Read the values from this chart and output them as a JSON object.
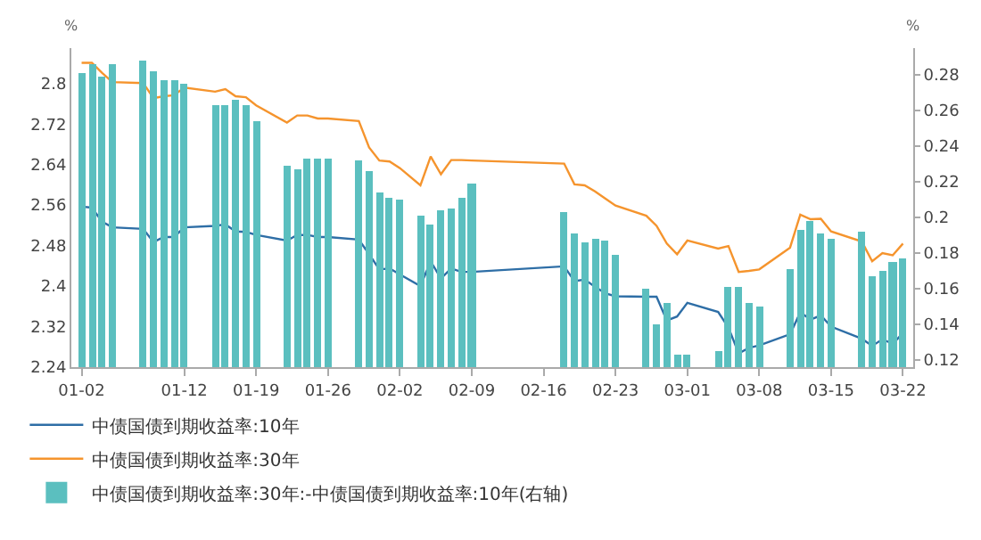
{
  "chart_data": {
    "type": "line",
    "x": [
      "--01-02",
      "--01-03",
      "--01-04",
      "--01-05",
      "--01-08",
      "--01-09",
      "--01-10",
      "--01-11",
      "--01-12",
      "--01-15",
      "--01-16",
      "--01-17",
      "--01-18",
      "--01-19",
      "--01-22",
      "--01-23",
      "--01-24",
      "--01-25",
      "--01-26",
      "--01-29",
      "--01-30",
      "--01-31",
      "--02-01",
      "--02-02",
      "--02-04",
      "--02-05",
      "--02-06",
      "--02-07",
      "--02-08",
      "--02-09",
      "--02-18",
      "--02-19",
      "--02-20",
      "--02-21",
      "--02-22",
      "--02-23",
      "--02-26",
      "--02-27",
      "--02-28",
      "--02-29",
      "--03-01",
      "--03-04",
      "--03-05",
      "--03-06",
      "--03-07",
      "--03-08",
      "--03-11",
      "--03-12",
      "--03-13",
      "--03-14",
      "--03-15",
      "--03-18",
      "--03-19",
      "--03-20",
      "--03-21",
      "--03-22"
    ],
    "series": [
      {
        "name": "中债国债到期收益率:10年",
        "color": "#2e6ea6",
        "values": [
          2.557,
          2.555,
          2.527,
          2.516,
          2.513,
          2.487,
          2.497,
          2.497,
          2.516,
          2.519,
          2.522,
          2.508,
          2.507,
          2.501,
          2.49,
          2.501,
          2.501,
          2.497,
          2.497,
          2.492,
          2.463,
          2.433,
          2.435,
          2.423,
          2.4,
          2.449,
          2.415,
          2.435,
          2.428,
          2.428,
          2.439,
          2.41,
          2.413,
          2.399,
          2.386,
          2.38,
          2.379,
          2.379,
          2.332,
          2.34,
          2.367,
          2.349,
          2.318,
          2.267,
          2.278,
          2.283,
          2.305,
          2.348,
          2.334,
          2.342,
          2.32,
          2.296,
          2.282,
          2.295,
          2.286,
          2.307
        ]
      },
      {
        "name": "中债国债到期收益率:30年",
        "color": "#f5942d",
        "values": [
          2.841,
          2.841,
          2.821,
          2.803,
          2.801,
          2.771,
          2.775,
          2.777,
          2.792,
          2.784,
          2.789,
          2.775,
          2.773,
          2.757,
          2.723,
          2.737,
          2.737,
          2.731,
          2.731,
          2.726,
          2.674,
          2.648,
          2.646,
          2.633,
          2.599,
          2.656,
          2.621,
          2.649,
          2.649,
          2.648,
          2.642,
          2.601,
          2.599,
          2.587,
          2.573,
          2.559,
          2.539,
          2.519,
          2.484,
          2.463,
          2.49,
          2.474,
          2.479,
          2.428,
          2.43,
          2.433,
          2.476,
          2.541,
          2.532,
          2.533,
          2.508,
          2.488,
          2.449,
          2.465,
          2.461,
          2.484
        ]
      },
      {
        "name": "中债国债到期收益率:30年:-中债国债到期收益率:10年(右轴)",
        "type": "bar",
        "axis": "y2",
        "color": "#5bbfbf",
        "values": [
          0.281,
          0.286,
          0.279,
          0.286,
          0.288,
          0.282,
          0.277,
          0.277,
          0.275,
          0.263,
          0.263,
          0.266,
          0.263,
          0.254,
          0.229,
          0.227,
          0.233,
          0.233,
          0.233,
          0.232,
          0.226,
          0.214,
          0.211,
          0.21,
          0.201,
          0.196,
          0.204,
          0.205,
          0.211,
          0.219,
          0.203,
          0.191,
          0.186,
          0.188,
          0.187,
          0.179,
          0.16,
          0.14,
          0.152,
          0.123,
          0.123,
          0.125,
          0.161,
          0.161,
          0.152,
          0.15,
          0.171,
          0.193,
          0.198,
          0.191,
          0.188,
          0.192,
          0.167,
          0.17,
          0.175,
          0.177
        ]
      }
    ],
    "ylabel": "%",
    "y2label": "%",
    "xlim": [
      "--01-01",
      "--03-23"
    ],
    "xticks": [
      {
        "value": "--01-02",
        "label": "01-02"
      },
      {
        "value": "--01-12",
        "label": "01-12"
      },
      {
        "value": "--01-19",
        "label": "01-19"
      },
      {
        "value": "--01-26",
        "label": "01-26"
      },
      {
        "value": "--02-02",
        "label": "02-02"
      },
      {
        "value": "--02-09",
        "label": "02-09"
      },
      {
        "value": "--02-16",
        "label": "02-16"
      },
      {
        "value": "--02-23",
        "label": "02-23"
      },
      {
        "value": "--03-01",
        "label": "03-01"
      },
      {
        "value": "--03-08",
        "label": "03-08"
      },
      {
        "value": "--03-15",
        "label": "03-15"
      },
      {
        "value": "--03-22",
        "label": "03-22"
      }
    ],
    "ylim": [
      2.24,
      2.87
    ],
    "yticks": [
      2.24,
      2.32,
      2.4,
      2.48,
      2.56,
      2.64,
      2.72,
      2.8
    ],
    "y2lim": [
      0.116,
      0.295
    ],
    "y2ticks": [
      0.12,
      0.14,
      0.16,
      0.18,
      0.2,
      0.22,
      0.24,
      0.26,
      0.28
    ],
    "grid": false,
    "legend": "bottom",
    "marker": "none",
    "line_style": "solid"
  }
}
